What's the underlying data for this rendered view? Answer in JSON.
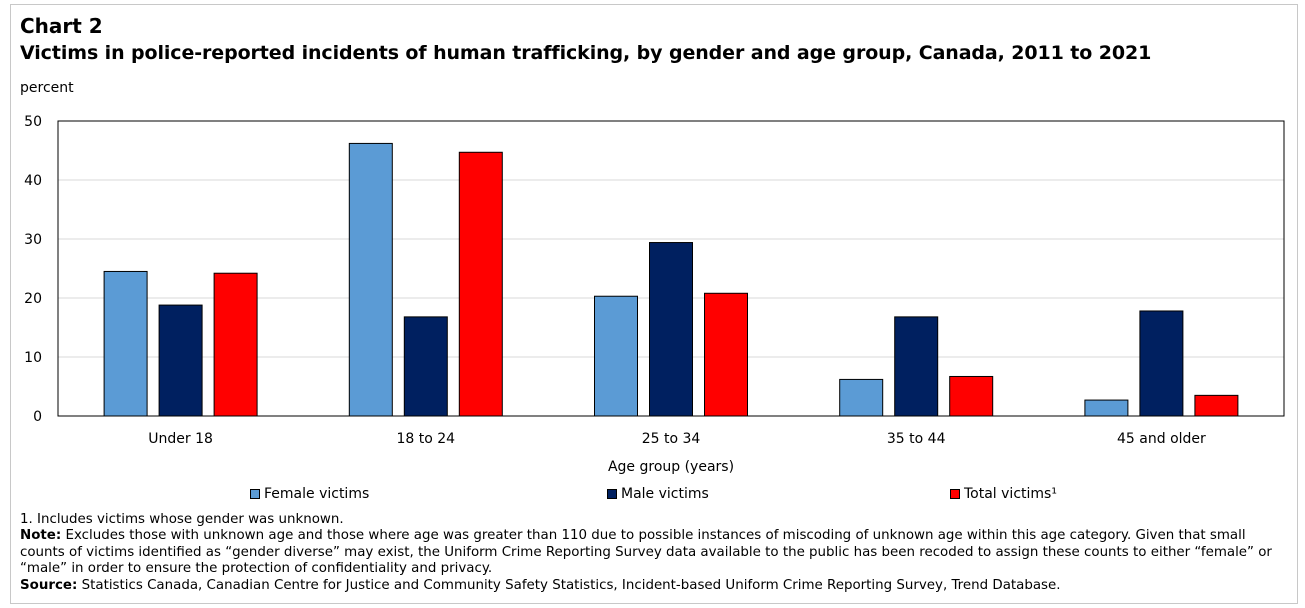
{
  "chart_number": "Chart 2",
  "chart_data": {
    "type": "bar",
    "title": "Victims in police-reported incidents of human trafficking, by gender and age group, Canada, 2011 to 2021",
    "ylabel": "percent",
    "xlabel": "Age group (years)",
    "ylim": [
      0,
      50
    ],
    "yticks": [
      0,
      10,
      20,
      30,
      40,
      50
    ],
    "grid": true,
    "legend_position": "bottom",
    "categories": [
      "Under 18",
      "18 to 24",
      "25 to 34",
      "35 to 44",
      "45 and older"
    ],
    "series": [
      {
        "name": "Female victims",
        "color": "#5b9bd5",
        "values": [
          24.5,
          46.2,
          20.3,
          6.2,
          2.7
        ]
      },
      {
        "name": "Male victims",
        "color": "#002060",
        "values": [
          18.8,
          16.8,
          29.4,
          16.8,
          17.8
        ]
      },
      {
        "name": "Total victims¹",
        "color": "#ff0000",
        "values": [
          24.2,
          44.7,
          20.8,
          6.7,
          3.5
        ]
      }
    ]
  },
  "notes": {
    "footnote1": "1. Includes victims whose gender was unknown.",
    "note_label": "Note:",
    "note_text": " Excludes those with unknown age and those where age was greater than 110 due to possible instances of miscoding of unknown age within this age category. Given that small counts of victims identified as “gender diverse” may exist, the Uniform Crime Reporting Survey data available to the public has been recoded to assign these counts to either “female” or “male” in order to ensure the protection of confidentiality and privacy.",
    "source_label": "Source:",
    "source_text": " Statistics Canada, Canadian Centre for Justice and Community Safety Statistics, Incident-based Uniform Crime Reporting Survey, Trend Database."
  }
}
